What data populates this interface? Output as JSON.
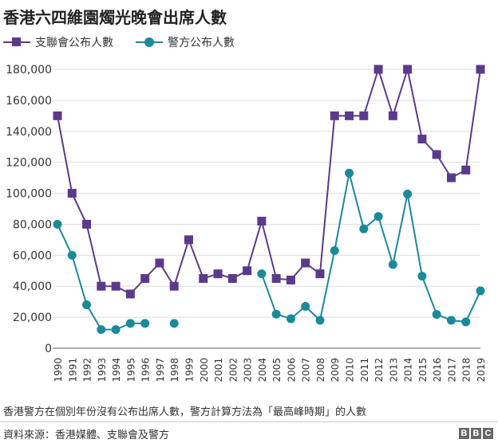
{
  "chart_data": {
    "type": "line",
    "title": "香港六四維園燭光晚會出席人數",
    "x": [
      "1990",
      "1991",
      "1992",
      "1993",
      "1994",
      "1995",
      "1996",
      "1997",
      "1998",
      "1999",
      "2000",
      "2001",
      "2002",
      "2003",
      "2004",
      "2005",
      "2006",
      "2007",
      "2008",
      "2009",
      "2010",
      "2011",
      "2012",
      "2013",
      "2014",
      "2015",
      "2016",
      "2017",
      "2018",
      "2019"
    ],
    "series": [
      {
        "name": "支聯會公布人數",
        "color": "#5b3a8c",
        "marker": "square",
        "values": [
          150000,
          100000,
          80000,
          40000,
          40000,
          35000,
          45000,
          55000,
          40000,
          70000,
          45000,
          48000,
          45000,
          50000,
          82000,
          45000,
          44000,
          55000,
          48000,
          150000,
          150000,
          150000,
          180000,
          150000,
          180000,
          135000,
          125000,
          110000,
          115000,
          180000
        ]
      },
      {
        "name": "警方公布人數",
        "color": "#1a8a9a",
        "marker": "circle",
        "values": [
          80000,
          60000,
          28000,
          12000,
          12000,
          16000,
          16000,
          null,
          16000,
          null,
          null,
          null,
          null,
          null,
          48000,
          22000,
          19000,
          27000,
          18000,
          63000,
          113000,
          77000,
          85000,
          54000,
          99500,
          46500,
          21800,
          18000,
          17000,
          37000
        ]
      }
    ],
    "ylim": [
      0,
      180000
    ],
    "yticks": [
      0,
      20000,
      40000,
      60000,
      80000,
      100000,
      120000,
      140000,
      160000,
      180000
    ],
    "grid": true,
    "legend_position": "top-left"
  },
  "note": "香港警方在個別年份沒有公布出席人數，警方計算方法為「最高峰時期」的人數",
  "source": "資料來源：香港媒體、支聯會及警方",
  "logo_letters": [
    "B",
    "B",
    "C"
  ]
}
